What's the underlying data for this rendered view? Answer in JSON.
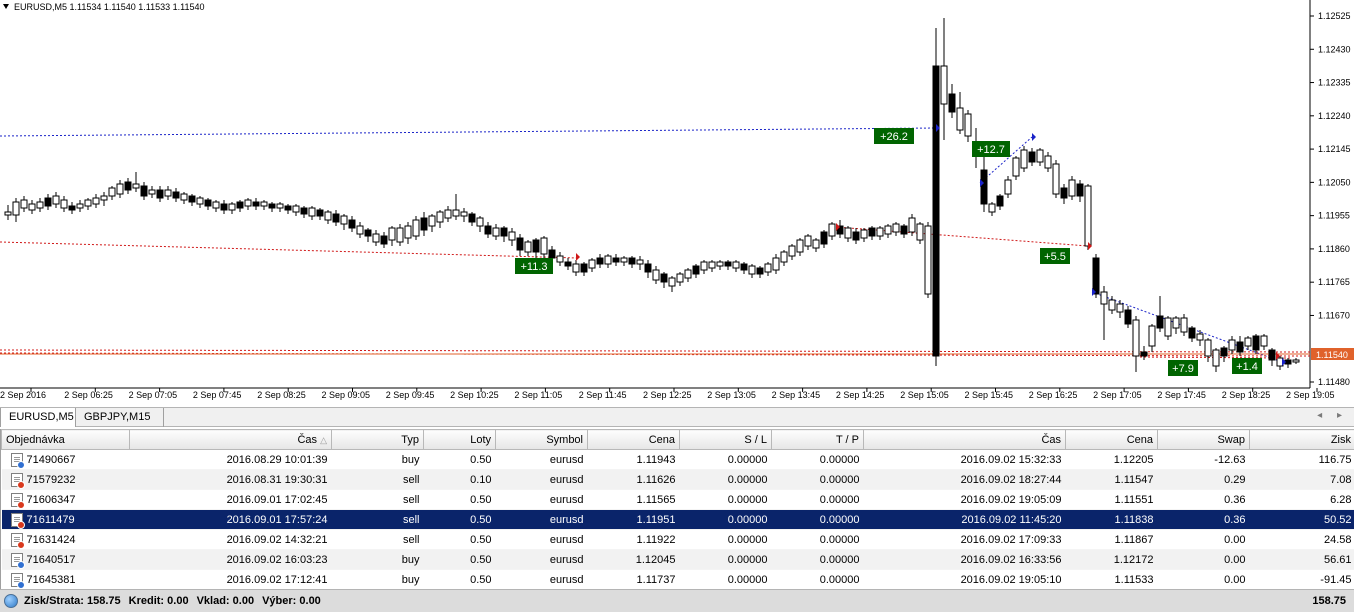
{
  "chart": {
    "header": "EURUSD,M5  1.11534 1.11540 1.11533 1.11540",
    "price_labels": [
      "1.12525",
      "1.12430",
      "1.12335",
      "1.12240",
      "1.12145",
      "1.12050",
      "1.11955",
      "1.11860",
      "1.11765",
      "1.11670",
      "1.11480"
    ],
    "current_price": "1.11540",
    "time_labels": [
      "2 Sep 2016",
      "2 Sep 06:25",
      "2 Sep 07:05",
      "2 Sep 07:45",
      "2 Sep 08:25",
      "2 Sep 09:05",
      "2 Sep 09:45",
      "2 Sep 10:25",
      "2 Sep 11:05",
      "2 Sep 11:45",
      "2 Sep 12:25",
      "2 Sep 13:05",
      "2 Sep 13:45",
      "2 Sep 14:25",
      "2 Sep 15:05",
      "2 Sep 15:45",
      "2 Sep 16:25",
      "2 Sep 17:05",
      "2 Sep 17:45",
      "2 Sep 18:25",
      "2 Sep 19:05"
    ],
    "profit_labels": [
      "+26.2",
      "+12.7",
      "+11.3",
      "+5.5",
      "+7.9",
      "+1.4"
    ],
    "colors": {
      "bull_fill": "#ffffff",
      "bear_fill": "#000000",
      "blue_line": "#1a23c8",
      "red_line": "#d01818",
      "profit_box": "#006400",
      "price_tag": "#e0622b"
    }
  },
  "symbol_tabs": [
    "EURUSD,M5",
    "GBPJPY,M15"
  ],
  "symbol_tab_arrows": "◂ ▸",
  "history": {
    "columns": [
      "Objednávka",
      "Čas",
      "Typ",
      "Loty",
      "Symbol",
      "Cena",
      "S / L",
      "T / P",
      "Čas",
      "Cena",
      "Swap",
      "Zisk"
    ],
    "rows": [
      [
        "71490667",
        "2016.08.29 10:01:39",
        "buy",
        "0.50",
        "eurusd",
        "1.11943",
        "0.00000",
        "0.00000",
        "2016.09.02 15:32:33",
        "1.12205",
        "-12.63",
        "116.75"
      ],
      [
        "71579232",
        "2016.08.31 19:30:31",
        "sell",
        "0.10",
        "eurusd",
        "1.11626",
        "0.00000",
        "0.00000",
        "2016.09.02 18:27:44",
        "1.11547",
        "0.29",
        "7.08"
      ],
      [
        "71606347",
        "2016.09.01 17:02:45",
        "sell",
        "0.50",
        "eurusd",
        "1.11565",
        "0.00000",
        "0.00000",
        "2016.09.02 19:05:09",
        "1.11551",
        "0.36",
        "6.28"
      ],
      [
        "71611479",
        "2016.09.01 17:57:24",
        "sell",
        "0.50",
        "eurusd",
        "1.11951",
        "0.00000",
        "0.00000",
        "2016.09.02 11:45:20",
        "1.11838",
        "0.36",
        "50.52"
      ],
      [
        "71631424",
        "2016.09.02 14:32:21",
        "sell",
        "0.50",
        "eurusd",
        "1.11922",
        "0.00000",
        "0.00000",
        "2016.09.02 17:09:33",
        "1.11867",
        "0.00",
        "24.58"
      ],
      [
        "71640517",
        "2016.09.02 16:03:23",
        "buy",
        "0.50",
        "eurusd",
        "1.12045",
        "0.00000",
        "0.00000",
        "2016.09.02 16:33:56",
        "1.12172",
        "0.00",
        "56.61"
      ],
      [
        "71645381",
        "2016.09.02 17:12:41",
        "buy",
        "0.50",
        "eurusd",
        "1.11737",
        "0.00000",
        "0.00000",
        "2016.09.02 19:05:10",
        "1.11533",
        "0.00",
        "-91.45"
      ]
    ],
    "selected_row": 3,
    "sort_indicator": "△"
  },
  "summary": {
    "pl_label": "Zisk/Strata:",
    "pl_value": "158.75",
    "credit_label": "Kredit:",
    "credit_value": "0.00",
    "deposit_label": "Vklad:",
    "deposit_value": "0.00",
    "withdrawal_label": "Výber:",
    "withdrawal_value": "0.00",
    "total": "158.75"
  }
}
